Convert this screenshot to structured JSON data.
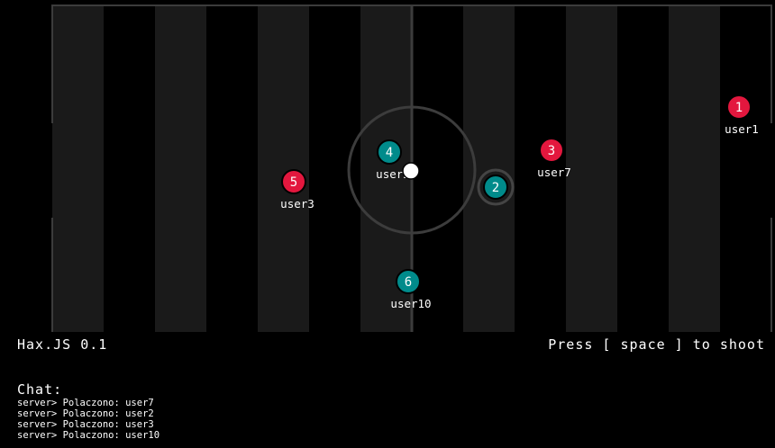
{
  "app": {
    "title": "Hax.JS 0.1",
    "hint": "Press [ space ] to shoot"
  },
  "colors": {
    "background": "#000000",
    "stripe": "#1a1a1a",
    "line": "#3c3c3c",
    "red_team": "#e3173e",
    "blue_team": "#008b8b",
    "ball": "#ffffff"
  },
  "players": [
    {
      "number": "1",
      "name": "user1",
      "team": "red"
    },
    {
      "number": "3",
      "name": "user7",
      "team": "red"
    },
    {
      "number": "5",
      "name": "user3",
      "team": "red"
    },
    {
      "number": "4",
      "name": "user2",
      "team": "blue"
    },
    {
      "number": "2",
      "name": "",
      "team": "blue",
      "controlled": true
    },
    {
      "number": "6",
      "name": "user10",
      "team": "blue"
    }
  ],
  "ball": {
    "icon": "ball-icon"
  },
  "chat": {
    "title": "Chat:",
    "messages": [
      "server> Polaczono: user7",
      "server> Polaczono: user2",
      "server> Polaczono: user3",
      "server> Polaczono: user10"
    ]
  }
}
